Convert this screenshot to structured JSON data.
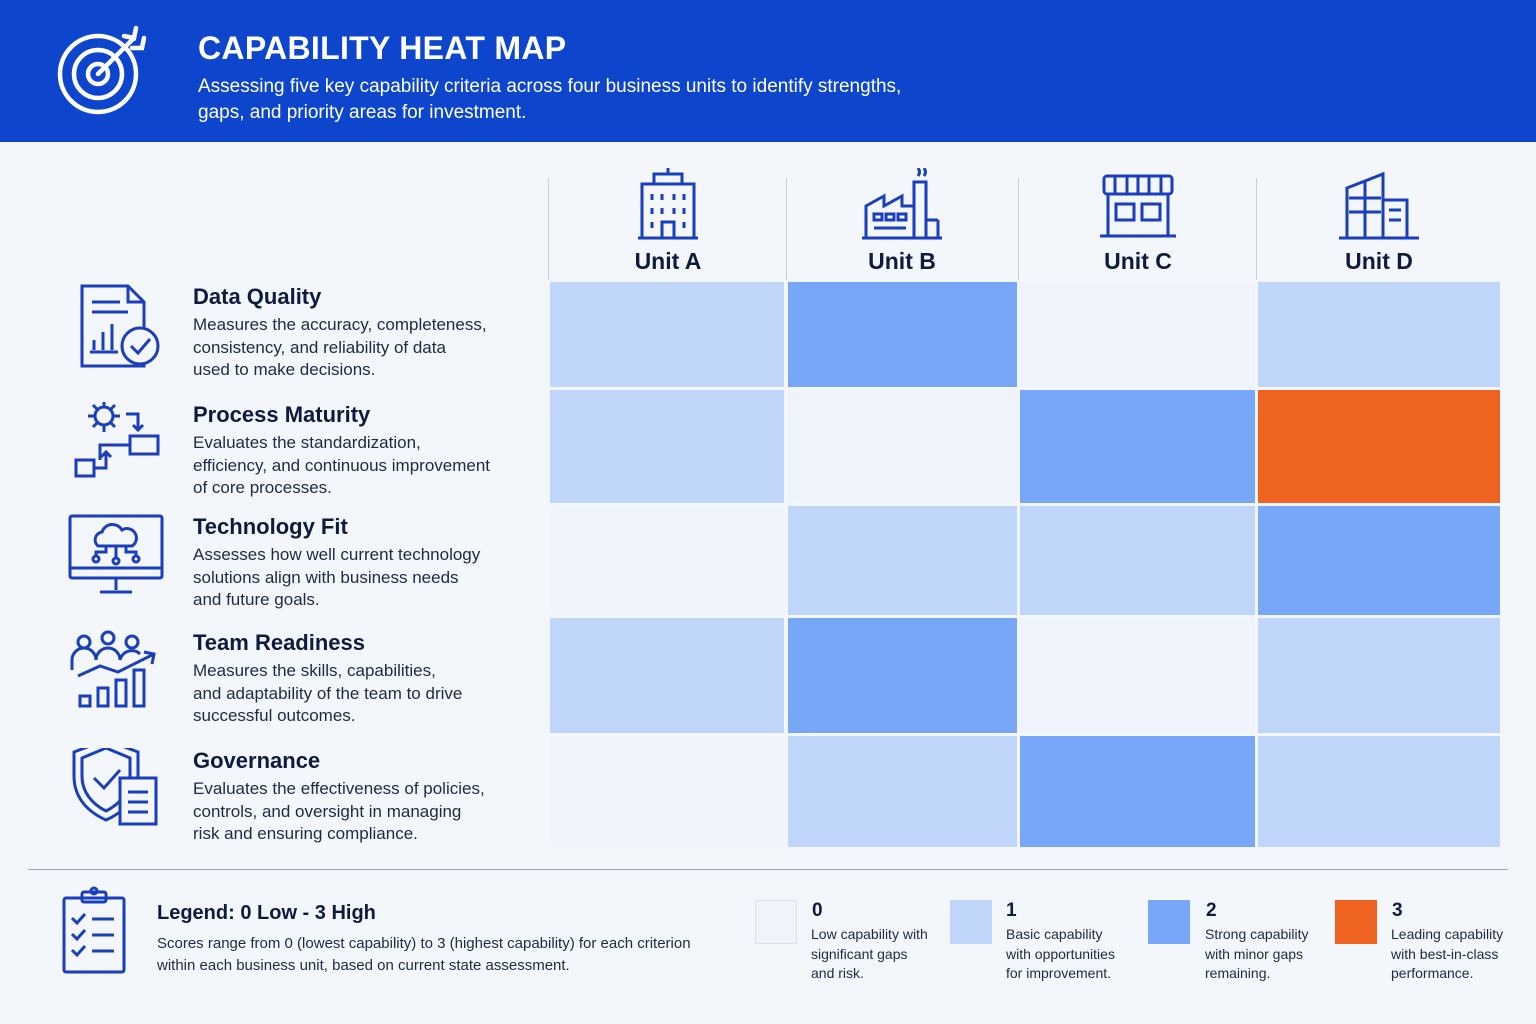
{
  "header": {
    "title": "CAPABILITY HEAT MAP",
    "subtitle_line1": "Assessing five key capability criteria across four business units to identify strengths,",
    "subtitle_line2": "gaps, and priority areas for investment."
  },
  "colors": {
    "header_bg": "#0d46cc",
    "level_0": "#eef3fc",
    "level_1": "#bfd6fa",
    "level_2": "#78a7f7",
    "level_3": "#ee6320",
    "icon_stroke": "#1a3fb8"
  },
  "chart_data": {
    "type": "heatmap",
    "title": "CAPABILITY HEAT MAP",
    "columns": [
      {
        "name": "Unit A",
        "icon": "office-building-icon"
      },
      {
        "name": "Unit B",
        "icon": "factory-icon"
      },
      {
        "name": "Unit C",
        "icon": "storefront-icon"
      },
      {
        "name": "Unit D",
        "icon": "corporate-campus-icon"
      }
    ],
    "rows": [
      {
        "name": "Data Quality",
        "icon": "data-report-icon",
        "desc": [
          "Measures the accuracy, completeness,",
          "consistency, and reliability of data",
          "used to make decisions."
        ]
      },
      {
        "name": "Process Maturity",
        "icon": "process-flow-icon",
        "desc": [
          "Evaluates the standardization,",
          "efficiency, and continuous improvement",
          "of core processes."
        ]
      },
      {
        "name": "Technology Fit",
        "icon": "cloud-monitor-icon",
        "desc": [
          "Assesses how well current technology",
          "solutions align with business needs",
          "and future goals."
        ]
      },
      {
        "name": "Team Readiness",
        "icon": "team-growth-icon",
        "desc": [
          "Measures the skills, capabilities,",
          "and adaptability of the team to drive",
          "successful outcomes."
        ]
      },
      {
        "name": "Governance",
        "icon": "shield-document-icon",
        "desc": [
          "Evaluates the effectiveness of policies,",
          "controls, and oversight in managing",
          "risk and ensuring compliance."
        ]
      }
    ],
    "values": [
      [
        1,
        2,
        0,
        1
      ],
      [
        1,
        0,
        2,
        3
      ],
      [
        0,
        1,
        1,
        2
      ],
      [
        1,
        2,
        0,
        1
      ],
      [
        0,
        1,
        2,
        1
      ]
    ],
    "scale": [
      0,
      3
    ]
  },
  "legend": {
    "icon": "checklist-clipboard-icon",
    "title": "Legend: 0 Low - 3 High",
    "desc_line1": "Scores range from 0 (lowest capability) to 3 (highest capability) for each criterion",
    "desc_line2": "within each business unit, based on current state assessment.",
    "items": [
      {
        "value": "0",
        "lines": [
          "Low capability with",
          "significant gaps",
          "and risk."
        ]
      },
      {
        "value": "1",
        "lines": [
          "Basic capability",
          "with opportunities",
          "for improvement."
        ]
      },
      {
        "value": "2",
        "lines": [
          "Strong capability",
          "with minor gaps",
          "remaining."
        ]
      },
      {
        "value": "3",
        "lines": [
          "Leading capability",
          "with best-in-class",
          "performance."
        ]
      }
    ]
  }
}
